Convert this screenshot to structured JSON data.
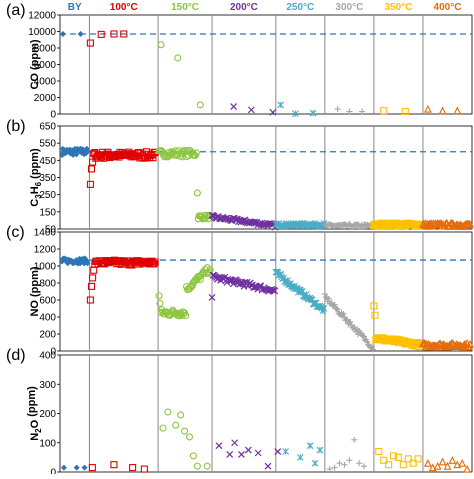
{
  "chart_data": [
    {
      "type": "scatter",
      "panel_label": "(a)",
      "ylabel": "CO (ppm)",
      "ylim": [
        0,
        12000
      ],
      "yticks": [
        "0",
        "2000",
        "4000",
        "6000",
        "8000",
        "10000",
        "12000"
      ],
      "reference_y": 9700,
      "series": [
        {
          "name": "BY",
          "color": "#2e75b6",
          "marker": "diamond",
          "x": [
            0.3,
            2.1
          ],
          "y": [
            9700,
            9700
          ]
        },
        {
          "name": "100°C",
          "color": "#e00000",
          "marker": "square",
          "x": [
            3.1,
            4.2,
            5.5,
            6.5
          ],
          "y": [
            8600,
            9650,
            9700,
            9700
          ]
        },
        {
          "name": "150°C",
          "color": "#8cc63f",
          "marker": "circle",
          "x": [
            10.3,
            12.0,
            14.3
          ],
          "y": [
            8400,
            6800,
            1100
          ]
        },
        {
          "name": "200°C",
          "color": "#7030a0",
          "marker": "x",
          "x": [
            17.7,
            19.5,
            21.7
          ],
          "y": [
            900,
            500,
            200
          ]
        },
        {
          "name": "250°C",
          "color": "#4bacc6",
          "marker": "star",
          "x": [
            22.5,
            24.0,
            25.8
          ],
          "y": [
            1100,
            50,
            100
          ]
        },
        {
          "name": "300°C",
          "color": "#a6a6a6",
          "marker": "plus",
          "x": [
            28.3,
            29.5,
            30.8
          ],
          "y": [
            600,
            300,
            300
          ]
        },
        {
          "name": "350°C",
          "color": "#ffc000",
          "marker": "square",
          "x": [
            33.0,
            35.2
          ],
          "y": [
            400,
            300
          ]
        },
        {
          "name": "400°C",
          "color": "#e46c0a",
          "marker": "triangle",
          "x": [
            37.5,
            39.0,
            40.5
          ],
          "y": [
            600,
            400,
            400
          ]
        }
      ]
    },
    {
      "type": "scatter",
      "panel_label": "(b)",
      "ylabel": "C3H6 (ppm)",
      "ylim": [
        50,
        650
      ],
      "yticks": [
        "50",
        "150",
        "250",
        "350",
        "450",
        "550",
        "650"
      ],
      "reference_y": 500,
      "segments": [
        {
          "name": "BY",
          "color": "#2e75b6",
          "marker": "diamond",
          "x0": 0.2,
          "x1": 2.8,
          "level": 500,
          "noise": 20,
          "n": 40
        },
        {
          "name": "100°C",
          "color": "#e00000",
          "marker": "square",
          "x0": 3.1,
          "x1": 9.7,
          "level": 480,
          "noise": 20,
          "n": 60,
          "dip": [
            310,
            400,
            440
          ]
        },
        {
          "name": "150°C",
          "color": "#8cc63f",
          "marker": "circle",
          "x0": 10.1,
          "x1": 13.9,
          "level": 490,
          "noise": 20,
          "n": 35
        },
        {
          "name": "150°C",
          "color": "#8cc63f",
          "marker": "circle",
          "x0": 14.0,
          "x1": 15.3,
          "level": 120,
          "noise": 12,
          "n": 15,
          "lead": [
            260
          ]
        },
        {
          "name": "200°C",
          "color": "#7030a0",
          "marker": "x",
          "x0": 15.5,
          "x1": 21.9,
          "level": 95,
          "noise": 10,
          "n": 60,
          "slope": -25
        },
        {
          "name": "250°C",
          "color": "#4bacc6",
          "marker": "star",
          "x0": 22.0,
          "x1": 26.9,
          "level": 75,
          "noise": 8,
          "n": 50
        },
        {
          "name": "300°C",
          "color": "#a6a6a6",
          "marker": "plus",
          "x0": 27.0,
          "x1": 31.9,
          "level": 70,
          "noise": 8,
          "n": 45
        },
        {
          "name": "350°C",
          "color": "#ffc000",
          "marker": "square",
          "x0": 32.0,
          "x1": 36.9,
          "level": 75,
          "noise": 10,
          "n": 50
        },
        {
          "name": "400°C",
          "color": "#e46c0a",
          "marker": "triangle",
          "x0": 37.0,
          "x1": 41.8,
          "level": 75,
          "noise": 10,
          "n": 50
        }
      ]
    },
    {
      "type": "scatter",
      "panel_label": "(c)",
      "ylabel": "NO (ppm)",
      "ylim": [
        0,
        1400
      ],
      "yticks": [
        "0",
        "200",
        "400",
        "600",
        "800",
        "1000",
        "1200",
        "1400"
      ],
      "reference_y": 1070,
      "segments": [
        {
          "name": "BY",
          "color": "#2e75b6",
          "marker": "diamond",
          "x0": 0.2,
          "x1": 2.8,
          "level": 1060,
          "noise": 30,
          "n": 40
        },
        {
          "name": "100°C",
          "color": "#e00000",
          "marker": "square",
          "x0": 3.1,
          "x1": 9.7,
          "level": 1040,
          "noise": 30,
          "n": 60,
          "dip": [
            600,
            760,
            860,
            950
          ]
        },
        {
          "name": "150°C",
          "color": "#8cc63f",
          "marker": "circle",
          "x0": 10.1,
          "x1": 12.8,
          "level": 450,
          "noise": 40,
          "n": 30,
          "lead": [
            650,
            560
          ]
        },
        {
          "name": "150°C",
          "color": "#8cc63f",
          "marker": "circle",
          "x0": 12.9,
          "x1": 15.3,
          "level": 850,
          "noise": 40,
          "n": 25,
          "slope": 120
        },
        {
          "name": "200°C",
          "color": "#7030a0",
          "marker": "x",
          "x0": 15.5,
          "x1": 21.9,
          "level": 790,
          "noise": 30,
          "n": 60,
          "slope": -80,
          "lead": [
            630
          ]
        },
        {
          "name": "250°C",
          "color": "#4bacc6",
          "marker": "star",
          "x0": 22.0,
          "x1": 26.9,
          "level": 700,
          "noise": 25,
          "n": 50,
          "slope": -220
        },
        {
          "name": "300°C",
          "color": "#a6a6a6",
          "marker": "plus",
          "x0": 27.0,
          "x1": 31.9,
          "level": 340,
          "noise": 30,
          "n": 50,
          "slope": -300
        },
        {
          "name": "350°C",
          "color": "#ffc000",
          "marker": "square",
          "x0": 32.0,
          "x1": 36.9,
          "level": 110,
          "noise": 25,
          "n": 50,
          "slope": -40,
          "lead": [
            530,
            420
          ]
        },
        {
          "name": "400°C",
          "color": "#e46c0a",
          "marker": "triangle",
          "x0": 37.0,
          "x1": 41.8,
          "level": 70,
          "noise": 25,
          "n": 50
        }
      ]
    },
    {
      "type": "scatter",
      "panel_label": "(d)",
      "ylabel": "N2O (ppm)",
      "ylim": [
        0,
        400
      ],
      "yticks": [
        "0",
        "100",
        "200",
        "300",
        "400"
      ],
      "series": [
        {
          "name": "BY",
          "color": "#2e75b6",
          "marker": "diamond",
          "x": [
            0.4,
            1.7,
            2.5
          ],
          "y": [
            15,
            15,
            15
          ]
        },
        {
          "name": "100°C",
          "color": "#e00000",
          "marker": "square",
          "x": [
            3.3,
            5.5,
            7.4,
            8.6
          ],
          "y": [
            15,
            25,
            15,
            10
          ]
        },
        {
          "name": "150°C",
          "color": "#8cc63f",
          "marker": "circle",
          "x": [
            10.5,
            11.0,
            11.8,
            12.3,
            12.7,
            13.2,
            13.6,
            14.0,
            15.0
          ],
          "y": [
            150,
            205,
            160,
            195,
            140,
            120,
            55,
            20,
            20
          ]
        },
        {
          "name": "200°C",
          "color": "#7030a0",
          "marker": "x",
          "x": [
            16.2,
            17.3,
            17.8,
            18.5,
            19.2,
            20.2,
            21.2,
            22.2
          ],
          "y": [
            90,
            60,
            100,
            60,
            75,
            65,
            20,
            70
          ]
        },
        {
          "name": "250°C",
          "color": "#4bacc6",
          "marker": "star",
          "x": [
            23.0,
            24.5,
            25.5,
            26.0,
            26.5
          ],
          "y": [
            70,
            50,
            90,
            30,
            75
          ]
        },
        {
          "name": "300°C",
          "color": "#a6a6a6",
          "marker": "plus",
          "x": [
            27.5,
            28.0,
            28.5,
            29.0,
            29.5,
            30.0,
            30.5,
            31.0
          ],
          "y": [
            10,
            15,
            30,
            25,
            40,
            110,
            30,
            20
          ]
        },
        {
          "name": "350°C",
          "color": "#ffc000",
          "marker": "square",
          "x": [
            32.5,
            33.0,
            33.5,
            34.0,
            34.5,
            35.0,
            35.5,
            36.0,
            36.5
          ],
          "y": [
            70,
            40,
            25,
            55,
            50,
            25,
            45,
            30,
            45
          ]
        },
        {
          "name": "400°C",
          "color": "#e46c0a",
          "marker": "triangle",
          "x": [
            37.5,
            38.0,
            38.5,
            39.0,
            39.5,
            40.0,
            40.5,
            41.0,
            41.5
          ],
          "y": [
            30,
            15,
            20,
            35,
            20,
            40,
            25,
            30,
            10
          ]
        }
      ]
    }
  ],
  "temperature_labels": [
    {
      "text": "BY",
      "color": "#2e75b6"
    },
    {
      "text": "100°C",
      "color": "#e00000"
    },
    {
      "text": "150°C",
      "color": "#8cc63f"
    },
    {
      "text": "200°C",
      "color": "#7030a0"
    },
    {
      "text": "250°C",
      "color": "#4bacc6"
    },
    {
      "text": "300°C",
      "color": "#a6a6a6"
    },
    {
      "text": "350°C",
      "color": "#ffc000"
    },
    {
      "text": "400°C",
      "color": "#e46c0a"
    }
  ],
  "segment_boundaries": [
    3,
    10,
    15.5,
    22,
    27,
    32,
    37
  ],
  "x_range": [
    0,
    42
  ]
}
